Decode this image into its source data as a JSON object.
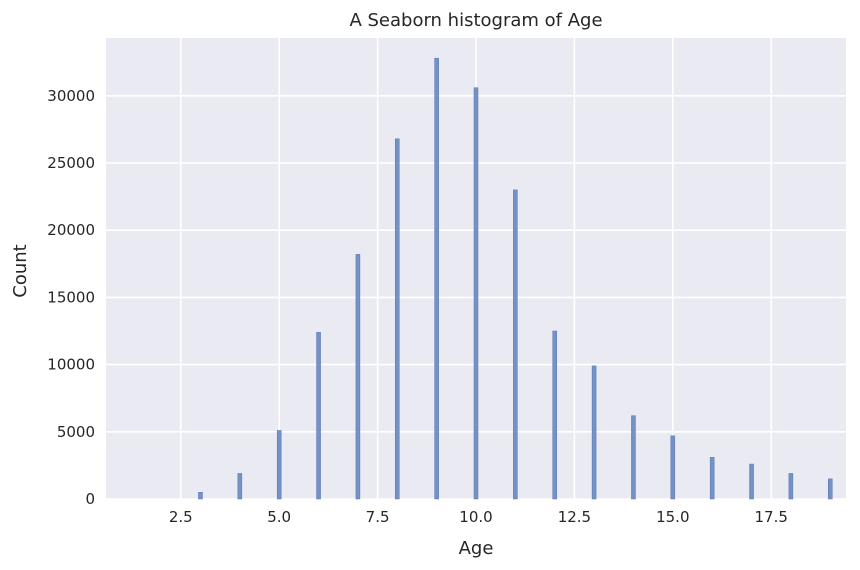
{
  "chart_data": {
    "type": "bar",
    "title": "A Seaborn histogram of Age",
    "xlabel": "Age",
    "ylabel": "Count",
    "xlim": [
      0.6,
      19.4
    ],
    "ylim": [
      0,
      34300
    ],
    "xticks": [
      2.5,
      5.0,
      7.5,
      10.0,
      12.5,
      15.0,
      17.5
    ],
    "xtick_labels": [
      "2.5",
      "5.0",
      "7.5",
      "10.0",
      "12.5",
      "15.0",
      "17.5"
    ],
    "yticks": [
      0,
      5000,
      10000,
      15000,
      20000,
      25000,
      30000
    ],
    "ytick_labels": [
      "0",
      "5000",
      "10000",
      "15000",
      "20000",
      "25000",
      "30000"
    ],
    "grid": true,
    "series": [
      {
        "x": [
          3,
          4,
          5,
          6,
          7,
          8,
          9,
          10,
          11,
          12,
          13,
          14,
          15,
          16,
          17,
          18,
          19
        ],
        "values": [
          500,
          1900,
          5100,
          12400,
          18200,
          26800,
          32800,
          30600,
          23000,
          12500,
          9900,
          6200,
          4700,
          3100,
          2600,
          1900,
          1500
        ]
      }
    ]
  },
  "colors": {
    "plot_background": "#eaeaf2",
    "grid": "#ffffff",
    "bar_fill": "#7592c6",
    "bar_edge": "#5876b0",
    "text": "#262626"
  }
}
